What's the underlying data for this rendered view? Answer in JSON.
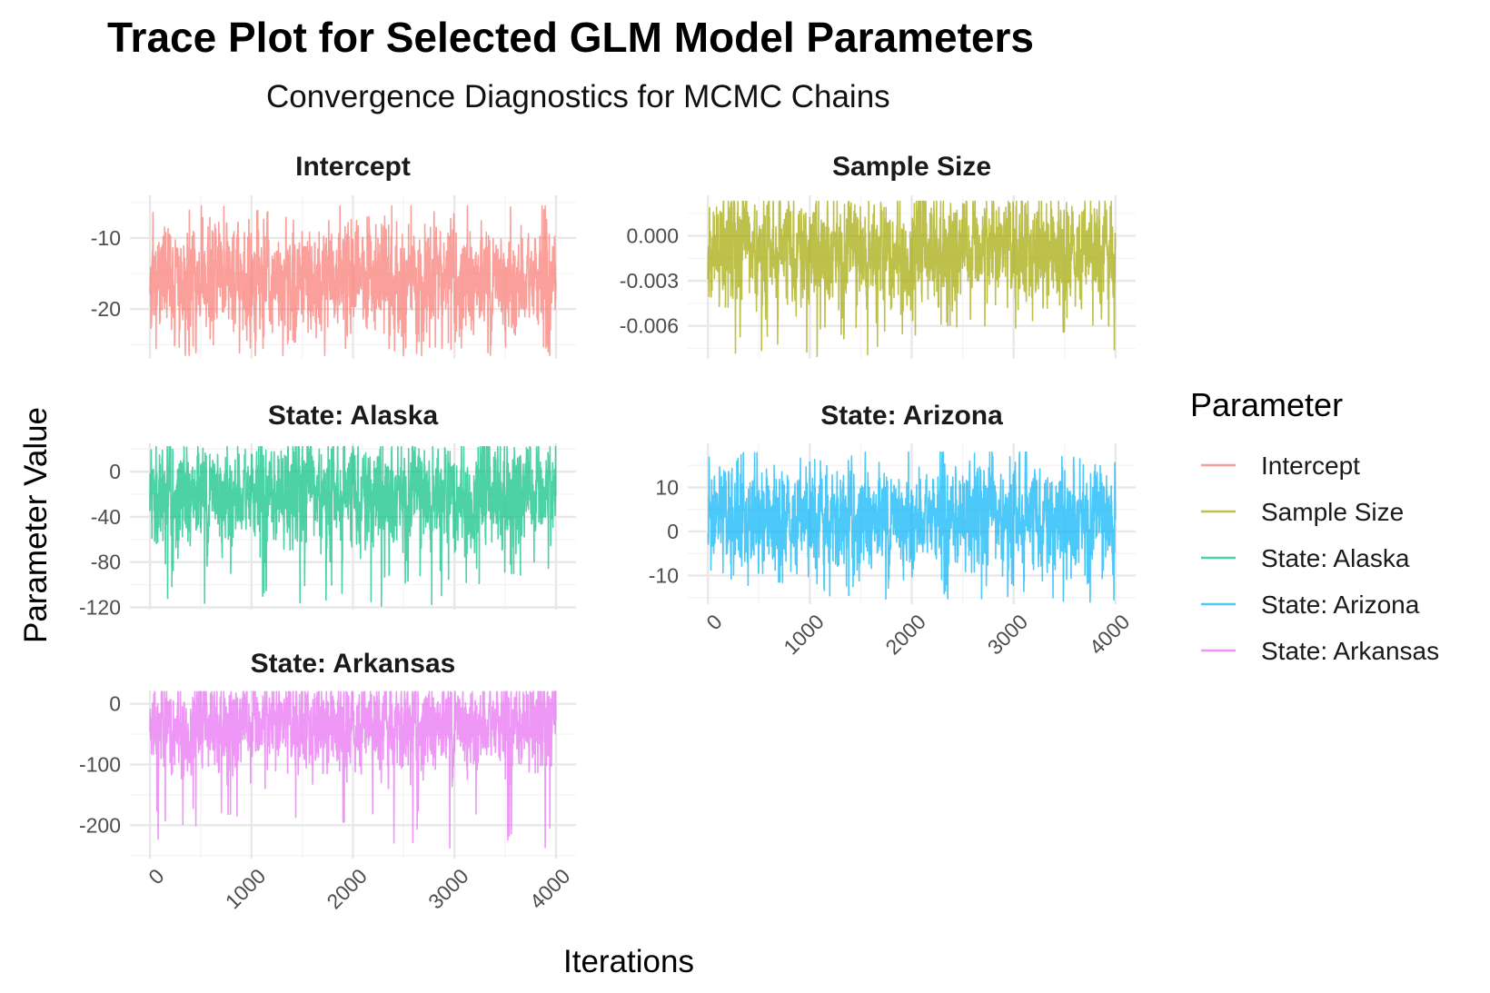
{
  "title": "Trace Plot for Selected GLM Model Parameters",
  "subtitle": "Convergence Diagnostics for MCMC Chains",
  "xlabel": "Iterations",
  "ylabel": "Parameter Value",
  "legend": {
    "title": "Parameter",
    "placement": "right",
    "items": [
      {
        "label": "Intercept",
        "color": "#F8766D"
      },
      {
        "label": "Sample Size",
        "color": "#A3A500"
      },
      {
        "label": "State: Alaska",
        "color": "#00BF7D"
      },
      {
        "label": "State: Arizona",
        "color": "#00B0F6"
      },
      {
        "label": "State: Arkansas",
        "color": "#E76BF3"
      }
    ]
  },
  "chart_data": [
    {
      "type": "line",
      "facet": "Intercept",
      "color": "#F8766D",
      "x_range": [
        0,
        4000
      ],
      "x_ticks": [
        "0",
        "1000",
        "2000",
        "3000",
        "4000"
      ],
      "ylim": [
        -27,
        -4
      ],
      "y_ticks": [
        -10,
        -20
      ],
      "y_tick_labels": [
        "-10",
        "-20"
      ],
      "iterations": 4000,
      "center": -16,
      "trace_summary": {
        "typical_low": -22,
        "typical_high": -10,
        "min": -26.5,
        "max": -5.5
      }
    },
    {
      "type": "line",
      "facet": "Sample Size",
      "color": "#A3A500",
      "x_range": [
        0,
        4000
      ],
      "x_ticks": [
        "0",
        "1000",
        "2000",
        "3000",
        "4000"
      ],
      "ylim": [
        -0.0082,
        0.0027
      ],
      "y_ticks": [
        0.0,
        -0.003,
        -0.006
      ],
      "y_tick_labels": [
        "0.000",
        "-0.003",
        "-0.006"
      ],
      "iterations": 4000,
      "center": -0.001,
      "trace_summary": {
        "typical_low": -0.0045,
        "typical_high": 0.001,
        "min": -0.0081,
        "max": 0.0023
      }
    },
    {
      "type": "line",
      "facet": "State: Alaska",
      "color": "#00BF7D",
      "x_range": [
        0,
        4000
      ],
      "x_ticks": [
        "0",
        "1000",
        "2000",
        "3000",
        "4000"
      ],
      "ylim": [
        -122,
        25
      ],
      "y_ticks": [
        0,
        -40,
        -80,
        -120
      ],
      "y_tick_labels": [
        "0",
        "-40",
        "-80",
        "-120"
      ],
      "iterations": 4000,
      "center": -20,
      "trace_summary": {
        "typical_low": -60,
        "typical_high": 12,
        "min": -120,
        "max": 22
      }
    },
    {
      "type": "line",
      "facet": "State: Arizona",
      "color": "#00B0F6",
      "x_range": [
        0,
        4000
      ],
      "x_ticks": [
        "0",
        "1000",
        "2000",
        "3000",
        "4000"
      ],
      "ylim": [
        -16.5,
        20
      ],
      "y_ticks": [
        10,
        0,
        -10
      ],
      "y_tick_labels": [
        "10",
        "0",
        "-10"
      ],
      "iterations": 4000,
      "center": 3,
      "trace_summary": {
        "typical_low": -6,
        "typical_high": 12,
        "min": -16,
        "max": 18
      }
    },
    {
      "type": "line",
      "facet": "State: Arkansas",
      "color": "#E76BF3",
      "x_range": [
        0,
        4000
      ],
      "x_ticks": [
        "0",
        "1000",
        "2000",
        "3000",
        "4000"
      ],
      "ylim": [
        -255,
        22
      ],
      "y_ticks": [
        0,
        -100,
        -200
      ],
      "y_tick_labels": [
        "0",
        "-100",
        "-200"
      ],
      "iterations": 4000,
      "center": -35,
      "trace_summary": {
        "typical_low": -100,
        "typical_high": 15,
        "min": -245,
        "max": 20
      }
    }
  ]
}
